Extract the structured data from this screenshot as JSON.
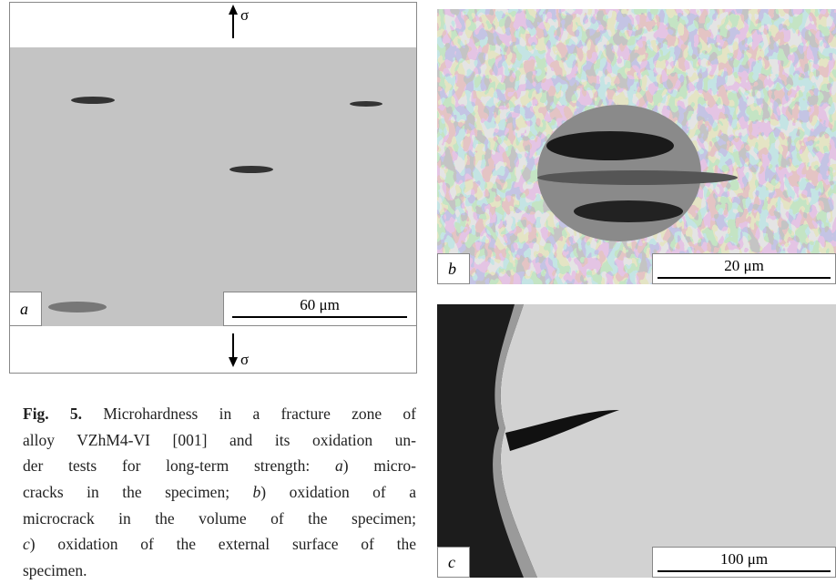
{
  "panels": [
    {
      "label": "a",
      "scale_bar": "60 μm",
      "load_symbol": "σ"
    },
    {
      "label": "b",
      "scale_bar": "20 μm"
    },
    {
      "label": "c",
      "scale_bar": "100 μm"
    }
  ],
  "caption": {
    "label": "Fig. 5.",
    "lines": [
      [
        "Microhardness in a fracture zone of"
      ],
      [
        "alloy VZhM4-VI [001] and its oxidation un-"
      ],
      [
        "der tests for long-term strength: ",
        "a",
        ") micro-"
      ],
      [
        "cracks in the specimen; ",
        "b",
        ") oxidation of a"
      ],
      [
        "microcrack in the volume of the specimen;"
      ],
      [
        "c",
        ") oxidation of the external surface of the"
      ],
      [
        "specimen."
      ]
    ]
  }
}
